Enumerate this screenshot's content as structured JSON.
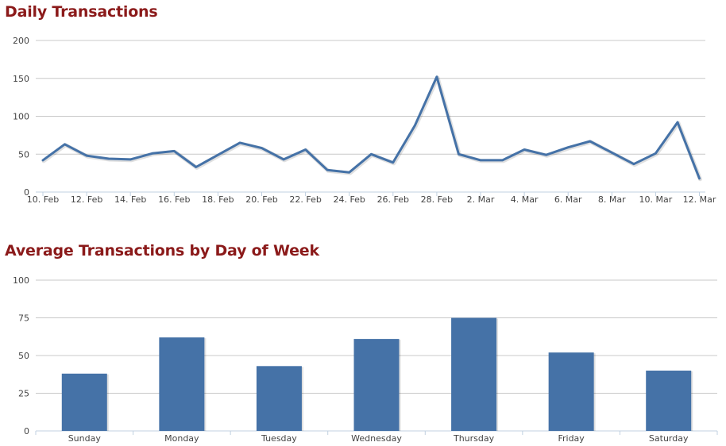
{
  "chart_data": [
    {
      "type": "line",
      "title": "Daily Transactions",
      "xlabel": "",
      "ylabel": "",
      "ylim": [
        0,
        200
      ],
      "yticks": [
        "0",
        "50",
        "100",
        "150",
        "200"
      ],
      "x": [
        "10. Feb",
        "11. Feb",
        "12. Feb",
        "13. Feb",
        "14. Feb",
        "15. Feb",
        "16. Feb",
        "17. Feb",
        "18. Feb",
        "19. Feb",
        "20. Feb",
        "21. Feb",
        "22. Feb",
        "23. Feb",
        "24. Feb",
        "25. Feb",
        "26. Feb",
        "27. Feb",
        "28. Feb",
        "1. Mar",
        "2. Mar",
        "3. Mar",
        "4. Mar",
        "5. Mar",
        "6. Mar",
        "7. Mar",
        "8. Mar",
        "9. Mar",
        "10. Mar",
        "11. Mar",
        "12. Mar"
      ],
      "xticks": [
        "10. Feb",
        "12. Feb",
        "14. Feb",
        "16. Feb",
        "18. Feb",
        "20. Feb",
        "22. Feb",
        "24. Feb",
        "26. Feb",
        "28. Feb",
        "2. Mar",
        "4. Mar",
        "6. Mar",
        "8. Mar",
        "10. Mar",
        "12. Mar"
      ],
      "series": [
        {
          "values": [
            42,
            63,
            48,
            44,
            43,
            51,
            54,
            33,
            49,
            65,
            58,
            43,
            56,
            29,
            26,
            50,
            39,
            88,
            152,
            50,
            42,
            42,
            56,
            49,
            59,
            67,
            52,
            37,
            51,
            92,
            18
          ],
          "color": "#4572a7"
        }
      ],
      "grid": true
    },
    {
      "type": "bar",
      "title": "Average Transactions by Day of Week",
      "xlabel": "",
      "ylabel": "",
      "ylim": [
        0,
        100
      ],
      "yticks": [
        "0",
        "25",
        "50",
        "75",
        "100"
      ],
      "categories": [
        "Sunday",
        "Monday",
        "Tuesday",
        "Wednesday",
        "Thursday",
        "Friday",
        "Saturday"
      ],
      "values": [
        38,
        62,
        43,
        61,
        75,
        52,
        40
      ],
      "color": "#4572a7",
      "grid": true
    }
  ]
}
